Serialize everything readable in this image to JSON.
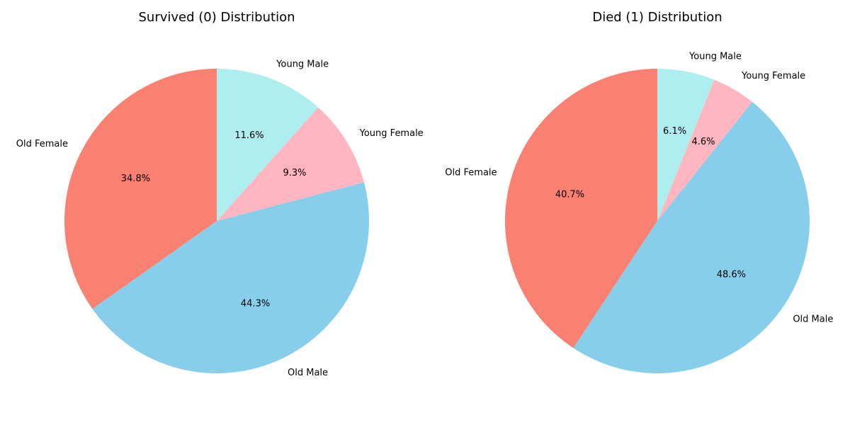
{
  "chart_data": [
    {
      "type": "pie",
      "title": "Survived (0) Distribution",
      "start_angle_deg": 90,
      "direction": "counterclockwise",
      "slices": [
        {
          "label": "Old Female",
          "value": 34.8,
          "pct_label": "34.8%",
          "color": "#fa8072"
        },
        {
          "label": "Old Male",
          "value": 44.3,
          "pct_label": "44.3%",
          "color": "#87ceeb"
        },
        {
          "label": "Young Female",
          "value": 9.3,
          "pct_label": "9.3%",
          "color": "#ffb6c1"
        },
        {
          "label": "Young Male",
          "value": 11.6,
          "pct_label": "11.6%",
          "color": "#afeeee"
        }
      ]
    },
    {
      "type": "pie",
      "title": "Died (1) Distribution",
      "start_angle_deg": 90,
      "direction": "counterclockwise",
      "slices": [
        {
          "label": "Old Female",
          "value": 40.7,
          "pct_label": "40.7%",
          "color": "#fa8072"
        },
        {
          "label": "Old Male",
          "value": 48.6,
          "pct_label": "48.6%",
          "color": "#87ceeb"
        },
        {
          "label": "Young Female",
          "value": 4.6,
          "pct_label": "4.6%",
          "color": "#ffb6c1"
        },
        {
          "label": "Young Male",
          "value": 6.1,
          "pct_label": "6.1%",
          "color": "#afeeee"
        }
      ]
    }
  ]
}
